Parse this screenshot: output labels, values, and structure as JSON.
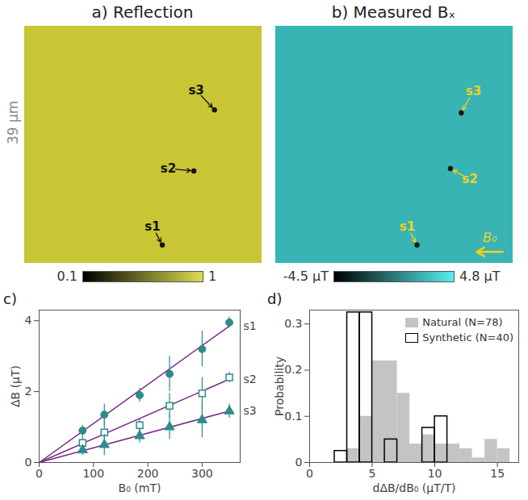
{
  "chart_data": [
    {
      "type": "image",
      "title": "a) Reflection",
      "size": 39,
      "scale_label": "39 µm",
      "colorbar": {
        "range": [
          0.1,
          1
        ],
        "ticks": [
          0.1,
          1
        ]
      },
      "annotations": [
        {
          "text": "s1",
          "x": 22.7,
          "y": 36.1
        },
        {
          "text": "s2",
          "x": 27.9,
          "y": 23.9
        },
        {
          "text": "s3",
          "x": 31.3,
          "y": 13.8
        }
      ]
    },
    {
      "type": "image",
      "title": "b) Measured Bₓ",
      "size": 39,
      "field_label": "B₀",
      "colorbar": {
        "range": [
          -4.5,
          4.8
        ],
        "ticks": [
          {
            "value": -4.5,
            "label": "-4.5 µT"
          },
          {
            "value": 4.8,
            "label": "4.8 µT"
          }
        ]
      },
      "annotations": [
        {
          "text": "s1",
          "x": 23.3,
          "y": 36.1
        },
        {
          "text": "s2",
          "x": 28.8,
          "y": 23.5
        },
        {
          "text": "s3",
          "x": 30.6,
          "y": 14.3
        }
      ]
    },
    {
      "type": "scatter",
      "title": "c)",
      "x_label": "B₀ (mT)",
      "y_label": "ΔB (µT)",
      "xlim": [
        0,
        370
      ],
      "xticks": [
        0,
        100,
        200,
        300
      ],
      "ylim": [
        0,
        4.3
      ],
      "yticks": [
        0,
        2,
        4
      ],
      "x": [
        80,
        120,
        185,
        240,
        300,
        350
      ],
      "series": [
        {
          "name": "s1",
          "color": "#2e8b8b",
          "marker": "circle",
          "values": [
            0.9,
            1.35,
            1.9,
            2.5,
            3.2,
            3.95
          ],
          "errors": [
            0.15,
            0.3,
            0.2,
            0.5,
            0.5,
            0.15
          ],
          "fit": {
            "x": [
              0,
              350
            ],
            "y": [
              0,
              3.85
            ]
          }
        },
        {
          "name": "s2",
          "color": "#2e8b8b",
          "marker": "square_open",
          "values": [
            0.55,
            0.85,
            1.05,
            1.6,
            1.95,
            2.4
          ],
          "errors": [
            0.2,
            0.35,
            0.2,
            0.35,
            0.45,
            0.15
          ],
          "fit": {
            "x": [
              0,
              350
            ],
            "y": [
              0,
              2.35
            ]
          }
        },
        {
          "name": "s3",
          "color": "#2e8b8b",
          "marker": "triangle",
          "values": [
            0.35,
            0.5,
            0.75,
            1.0,
            1.2,
            1.45
          ],
          "errors": [
            0.15,
            0.3,
            0.2,
            0.35,
            0.5,
            0.2
          ],
          "fit": {
            "x": [
              0,
              350
            ],
            "y": [
              0,
              1.45
            ]
          }
        }
      ]
    },
    {
      "type": "histogram",
      "title": "d)",
      "x_label": "dΔB/dB₀ (µT/T)",
      "y_label": "Probability",
      "xlim": [
        0,
        16.7
      ],
      "xticks": [
        0,
        5,
        10,
        15
      ],
      "ylim": [
        0,
        0.33
      ],
      "yticks": [
        0,
        0.1,
        0.2,
        0.3
      ],
      "legend": "top-right",
      "series": [
        {
          "name": "Natural (N=78)",
          "color": "#c4c4c4",
          "marker": "filled",
          "bins": [
            3,
            4,
            5,
            6,
            7,
            8,
            9,
            10,
            11,
            12,
            13,
            14,
            15,
            16
          ],
          "values": [
            0.03,
            0.1,
            0.22,
            0.22,
            0.15,
            0.04,
            0.06,
            0.04,
            0.04,
            0.03,
            0.01,
            0.05,
            0.03
          ]
        },
        {
          "name": "Synthetic (N=40)",
          "color": "#000000",
          "marker": "open",
          "bins": [
            2,
            3,
            4,
            5,
            6,
            7,
            8,
            9,
            10,
            11
          ],
          "values": [
            0.025,
            0.325,
            0.325,
            0,
            0.05,
            0,
            0,
            0.075,
            0.1
          ]
        }
      ]
    }
  ]
}
